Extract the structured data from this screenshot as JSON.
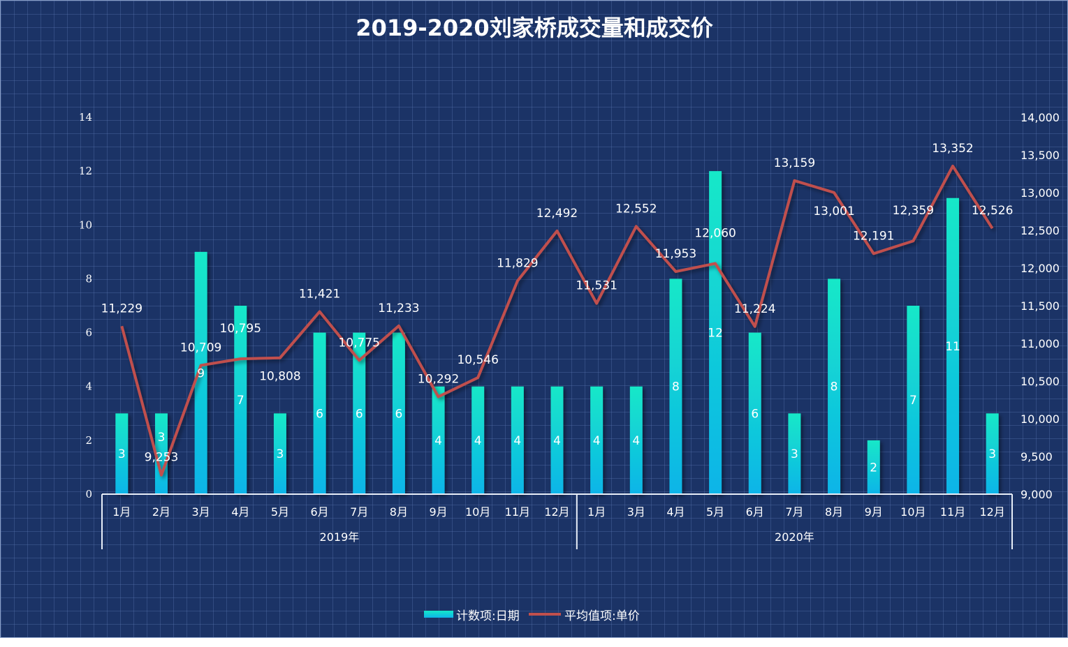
{
  "chart_data": {
    "type": "bar+line",
    "title": "2019-2020刘家桥成交量和成交价",
    "groups": [
      {
        "label": "2019年",
        "categories": [
          "1月",
          "2月",
          "3月",
          "4月",
          "5月",
          "6月",
          "7月",
          "8月",
          "9月",
          "10月",
          "11月",
          "12月"
        ]
      },
      {
        "label": "2020年",
        "categories": [
          "1月",
          "3月",
          "4月",
          "5月",
          "6月",
          "7月",
          "8月",
          "9月",
          "10月",
          "11月",
          "12月"
        ]
      }
    ],
    "series": [
      {
        "name": "计数项:日期",
        "type": "bar",
        "axis": "left",
        "color": "#0fb4e8",
        "color_top": "#14e8c8",
        "values": [
          3,
          3,
          9,
          7,
          3,
          6,
          6,
          6,
          4,
          4,
          4,
          4,
          4,
          4,
          8,
          12,
          6,
          3,
          8,
          2,
          7,
          11,
          3
        ]
      },
      {
        "name": "平均值项:单价",
        "type": "line",
        "axis": "right",
        "color": "#c0504d",
        "values": [
          11229,
          9253,
          10709,
          10795,
          10808,
          11421,
          10775,
          11233,
          10292,
          10546,
          11829,
          12492,
          11531,
          12552,
          11953,
          12060,
          11224,
          13159,
          13001,
          12191,
          12359,
          13352,
          12526
        ]
      }
    ],
    "y_left": {
      "range": [
        0,
        14
      ],
      "ticks": [
        0,
        2,
        4,
        6,
        8,
        10,
        12,
        14
      ]
    },
    "y_right": {
      "range": [
        9000,
        14000
      ],
      "ticks": [
        "9,000",
        "9,500",
        "10,000",
        "10,500",
        "11,000",
        "11,500",
        "12,000",
        "12,500",
        "13,000",
        "13,500",
        "14,000"
      ]
    },
    "legend": "bottom",
    "grid": false,
    "background": "#1b3366"
  }
}
